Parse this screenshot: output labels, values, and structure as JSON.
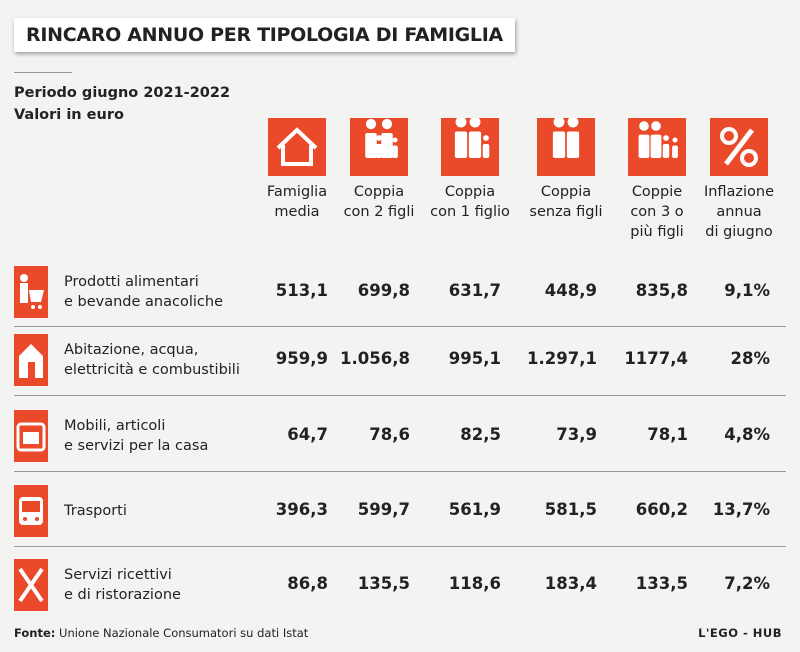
{
  "title": "RINCARO ANNUO PER TIPOLOGIA DI FAMIGLIA",
  "subtitle": [
    "Periodo giugno 2021-2022",
    "Valori in euro"
  ],
  "table": {
    "columns": [
      "Famiglia\nmedia",
      "Coppia\ncon 2 figli",
      "Coppia\ncon 1 figlio",
      "Coppia\nsenza figli",
      "Coppie\ncon 3 o\npiù figli",
      "Inflazione\nannua\ndi giugno"
    ],
    "rows": [
      {
        "label": "Prodotti alimentari\ne bevande anacoliche",
        "values": [
          "513,1",
          "699,8",
          "631,7",
          "448,9",
          "835,8",
          "9,1%"
        ]
      },
      {
        "label": "Abitazione, acqua,\nelettricità e combustibili",
        "values": [
          "959,9",
          "1.056,8",
          "995,1",
          "1.297,1",
          "1177,4",
          "28%"
        ]
      },
      {
        "label": "Mobili, articoli\ne servizi per la casa",
        "values": [
          "64,7",
          "78,6",
          "82,5",
          "73,9",
          "78,1",
          "4,8%"
        ]
      },
      {
        "label": "Trasporti",
        "values": [
          "396,3",
          "599,7",
          "561,9",
          "581,5",
          "660,2",
          "13,7%"
        ]
      },
      {
        "label": "Servizi ricettivi\ne di ristorazione",
        "values": [
          "86,8",
          "135,5",
          "118,6",
          "183,4",
          "133,5",
          "7,2%"
        ]
      }
    ]
  },
  "footer": {
    "source_label": "Fonte:",
    "source": "Unione Nazionale Consumatori su dati Istat",
    "credit": "L'EGO - HUB"
  }
}
